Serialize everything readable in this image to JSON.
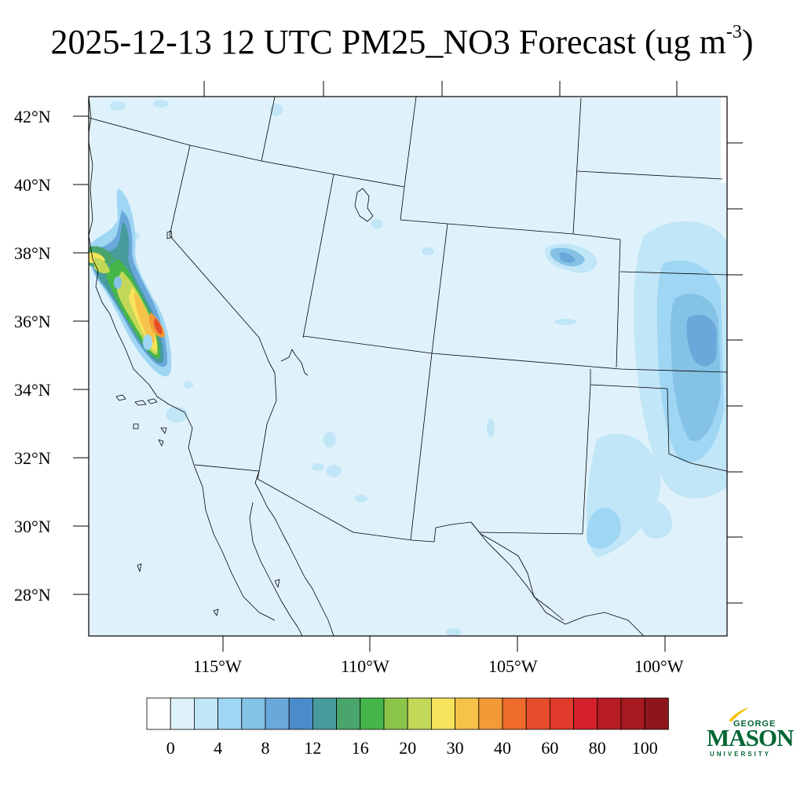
{
  "title": {
    "main": "2025-12-13 12 UTC PM25_NO3 Forecast (ug m",
    "sup": "-3",
    "close": ")"
  },
  "map": {
    "region": "US Southwest / Northern Mexico",
    "background_color": "#dff2fb",
    "lat_labels": [
      "42°N",
      "40°N",
      "38°N",
      "36°N",
      "34°N",
      "32°N",
      "30°N",
      "28°N"
    ],
    "lon_labels": [
      "115°W",
      "110°W",
      "105°W",
      "100°W"
    ]
  },
  "colorbar": {
    "colors": [
      "#ffffff",
      "#dff2fb",
      "#c0e6f7",
      "#9fd6f4",
      "#84c2e6",
      "#6aa7db",
      "#4b8bca",
      "#479b9c",
      "#4aa56c",
      "#45b649",
      "#8ac54a",
      "#c2d858",
      "#f7e35c",
      "#f7c24a",
      "#f39a37",
      "#ef6b2b",
      "#e64d2a",
      "#e03a2a",
      "#d5212b",
      "#b81c24",
      "#a8191f",
      "#8e1519"
    ],
    "labels": [
      "0",
      "4",
      "8",
      "12",
      "16",
      "20",
      "30",
      "40",
      "60",
      "80",
      "100"
    ]
  },
  "logo": {
    "line1": "GEORGE",
    "line2": "MASON",
    "line3": "UNIVERSITY",
    "color": "#006633",
    "accent": "#f2c200"
  }
}
